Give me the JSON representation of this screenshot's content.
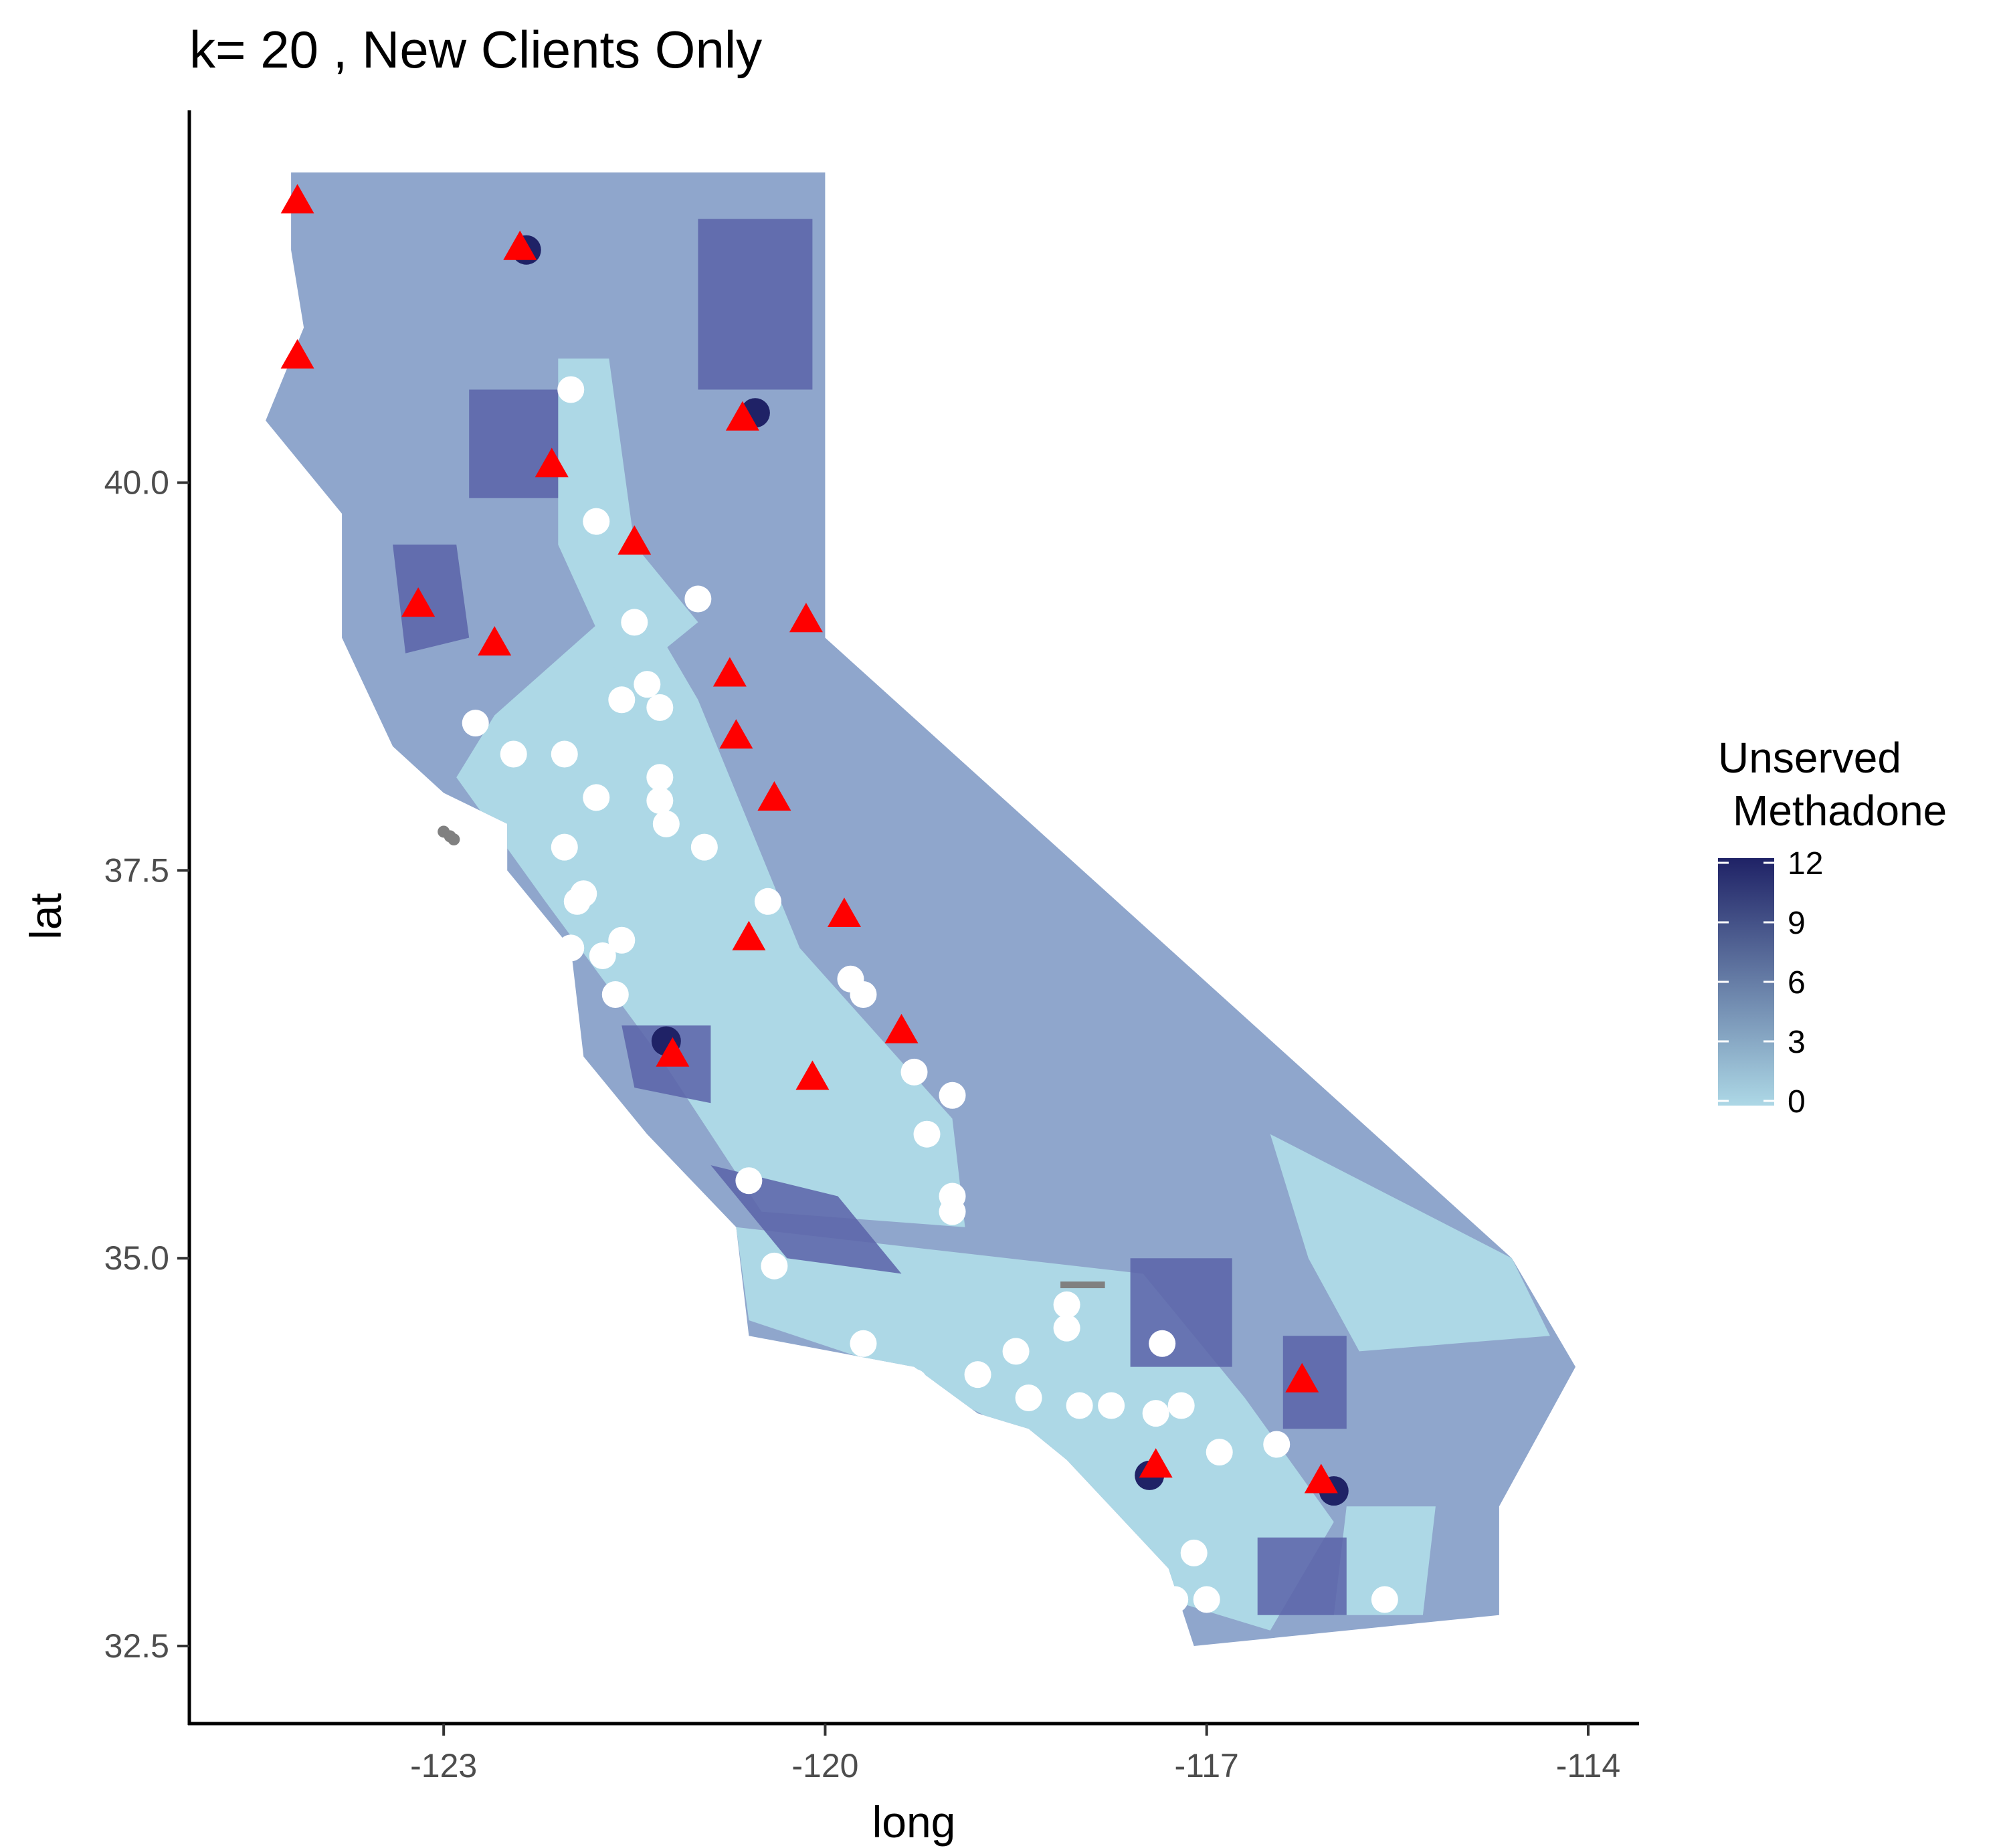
{
  "chart_data": {
    "type": "scatter",
    "title": "k= 20 , New Clients Only",
    "xlabel": "long",
    "ylabel": "lat",
    "xlim": [
      -125.0,
      -113.6
    ],
    "ylim": [
      32.0,
      42.4
    ],
    "x_ticks": [
      "-123",
      "-120",
      "-117",
      "-114"
    ],
    "y_ticks": [
      "32.5",
      "35.0",
      "37.5",
      "40.0"
    ],
    "x_tick_values": [
      -123,
      -120,
      -117,
      -114
    ],
    "y_tick_values": [
      32.5,
      35.0,
      37.5,
      40.0
    ],
    "grid": false,
    "legend": {
      "title_line1": "Unserved",
      "title_line2": "Methadone",
      "placement": "right",
      "values": [
        "0",
        "3",
        "6",
        "9",
        "12"
      ],
      "value_numbers": [
        0,
        3,
        6,
        9,
        12
      ],
      "color_low": "#add8e6",
      "color_high": "#1f2266"
    },
    "colors": {
      "fill_light": "#add8e6",
      "fill_mid": "#8fa6cc",
      "fill_dark": "#5b63a8",
      "fill_darkest": "#1f2266",
      "na": "#808080",
      "triangle": "#ff0000",
      "circle": "#ffffff"
    },
    "state_outline": [
      [
        -124.2,
        42.0
      ],
      [
        -120.0,
        42.0
      ],
      [
        -120.0,
        39.0
      ],
      [
        -114.6,
        35.0
      ],
      [
        -114.1,
        34.3
      ],
      [
        -114.7,
        33.4
      ],
      [
        -114.7,
        32.7
      ],
      [
        -117.1,
        32.5
      ],
      [
        -117.3,
        33.0
      ],
      [
        -118.1,
        33.7
      ],
      [
        -118.4,
        33.9
      ],
      [
        -118.8,
        34.0
      ],
      [
        -119.3,
        34.3
      ],
      [
        -120.6,
        34.5
      ],
      [
        -120.7,
        35.2
      ],
      [
        -121.4,
        35.8
      ],
      [
        -121.9,
        36.3
      ],
      [
        -122.0,
        37.0
      ],
      [
        -122.5,
        37.5
      ],
      [
        -122.5,
        37.8
      ],
      [
        -123.0,
        38.0
      ],
      [
        -123.4,
        38.3
      ],
      [
        -123.8,
        39.0
      ],
      [
        -123.8,
        39.8
      ],
      [
        -124.4,
        40.4
      ],
      [
        -124.1,
        41.0
      ],
      [
        -124.2,
        41.5
      ],
      [
        -124.2,
        42.0
      ]
    ],
    "series": [
      {
        "marker": "triangle",
        "points": [
          [
            -124.15,
            41.8
          ],
          [
            -122.4,
            41.5
          ],
          [
            -124.15,
            40.8
          ],
          [
            -120.65,
            40.4
          ],
          [
            -122.15,
            40.1
          ],
          [
            -121.5,
            39.6
          ],
          [
            -123.2,
            39.2
          ],
          [
            -122.6,
            38.95
          ],
          [
            -120.15,
            39.1
          ],
          [
            -120.75,
            38.75
          ],
          [
            -120.7,
            38.35
          ],
          [
            -120.4,
            37.95
          ],
          [
            -119.85,
            37.2
          ],
          [
            -120.6,
            37.05
          ],
          [
            -119.4,
            36.45
          ],
          [
            -121.2,
            36.3
          ],
          [
            -120.1,
            36.15
          ],
          [
            -116.25,
            34.2
          ],
          [
            -117.4,
            33.65
          ],
          [
            -116.1,
            33.55
          ]
        ]
      },
      {
        "marker": "circle",
        "points": [
          [
            -122.0,
            40.6
          ],
          [
            -121.8,
            39.75
          ],
          [
            -121.0,
            39.25
          ],
          [
            -121.5,
            39.1
          ],
          [
            -121.4,
            38.7
          ],
          [
            -121.6,
            38.6
          ],
          [
            -121.3,
            38.55
          ],
          [
            -122.75,
            38.45
          ],
          [
            -122.45,
            38.25
          ],
          [
            -122.05,
            38.25
          ],
          [
            -121.3,
            38.1
          ],
          [
            -121.3,
            37.95
          ],
          [
            -121.8,
            37.97
          ],
          [
            -121.25,
            37.8
          ],
          [
            -120.95,
            37.65
          ],
          [
            -122.05,
            37.65
          ],
          [
            -120.45,
            37.3
          ],
          [
            -121.9,
            37.35
          ],
          [
            -121.95,
            37.3
          ],
          [
            -121.6,
            37.05
          ],
          [
            -122.0,
            37.0
          ],
          [
            -121.75,
            36.95
          ],
          [
            -119.8,
            36.8
          ],
          [
            -119.7,
            36.7
          ],
          [
            -121.65,
            36.7
          ],
          [
            -119.3,
            36.2
          ],
          [
            -119.0,
            36.05
          ],
          [
            -119.2,
            35.8
          ],
          [
            -120.6,
            35.5
          ],
          [
            -119.0,
            35.4
          ],
          [
            -119.0,
            35.3
          ],
          [
            -120.4,
            34.95
          ],
          [
            -118.1,
            34.7
          ],
          [
            -118.1,
            34.55
          ],
          [
            -117.35,
            34.45
          ],
          [
            -119.7,
            34.45
          ],
          [
            -118.5,
            34.4
          ],
          [
            -119.3,
            34.2
          ],
          [
            -118.8,
            34.25
          ],
          [
            -118.4,
            34.1
          ],
          [
            -118.0,
            34.05
          ],
          [
            -117.75,
            34.05
          ],
          [
            -117.2,
            34.05
          ],
          [
            -117.4,
            34.0
          ],
          [
            -116.9,
            33.75
          ],
          [
            -116.45,
            33.8
          ],
          [
            -117.1,
            33.1
          ],
          [
            -117.25,
            32.8
          ],
          [
            -117.0,
            32.8
          ],
          [
            -115.6,
            32.8
          ]
        ]
      }
    ]
  }
}
